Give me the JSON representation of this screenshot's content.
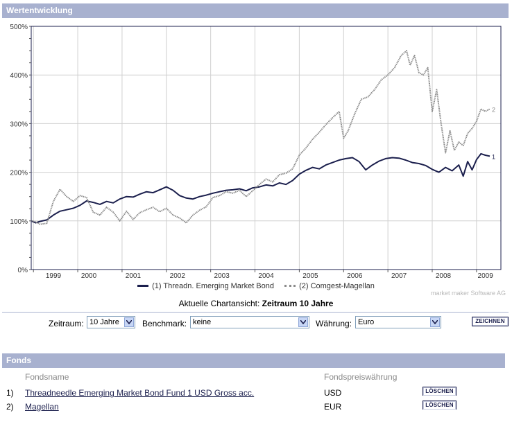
{
  "header": {
    "title": "Wertentwicklung"
  },
  "chart_data": {
    "type": "line",
    "title": "Wertentwicklung",
    "xlabel": "",
    "ylabel": "",
    "ylim": [
      0,
      500
    ],
    "yticks": [
      "0%",
      "100%",
      "200%",
      "300%",
      "400%",
      "500%"
    ],
    "x_labels": [
      "1999",
      "2000",
      "2001",
      "2002",
      "2003",
      "2004",
      "2005",
      "2006",
      "2007",
      "2008",
      "2009"
    ],
    "x_label_positions_year": [
      1999.2,
      2000.0,
      2001.0,
      2002.0,
      2003.0,
      2004.0,
      2005.0,
      2006.0,
      2007.0,
      2008.0,
      2008.95
    ],
    "xlim": [
      1998.95,
      2009.55
    ],
    "grid": true,
    "series": [
      {
        "name": "Threadn. Emerging Market Bond",
        "index": "(1)",
        "end_label": "1",
        "style": "solid",
        "color": "#1b1f4d",
        "x": [
          1998.95,
          1999.05,
          1999.15,
          1999.3,
          1999.45,
          1999.6,
          1999.75,
          1999.9,
          2000.05,
          2000.2,
          2000.35,
          2000.5,
          2000.65,
          2000.8,
          2000.95,
          2001.1,
          2001.25,
          2001.4,
          2001.55,
          2001.7,
          2001.85,
          2002.0,
          2002.15,
          2002.3,
          2002.45,
          2002.6,
          2002.75,
          2002.9,
          2003.05,
          2003.2,
          2003.35,
          2003.5,
          2003.65,
          2003.8,
          2003.95,
          2004.1,
          2004.25,
          2004.4,
          2004.55,
          2004.7,
          2004.85,
          2005.0,
          2005.15,
          2005.3,
          2005.45,
          2005.6,
          2005.75,
          2005.9,
          2006.05,
          2006.2,
          2006.35,
          2006.5,
          2006.65,
          2006.8,
          2006.95,
          2007.1,
          2007.25,
          2007.4,
          2007.55,
          2007.7,
          2007.85,
          2008.0,
          2008.15,
          2008.3,
          2008.45,
          2008.6,
          2008.7,
          2008.8,
          2008.9,
          2009.0,
          2009.1,
          2009.2,
          2009.3
        ],
        "values": [
          100,
          96,
          99,
          102,
          112,
          120,
          123,
          126,
          132,
          141,
          138,
          134,
          140,
          137,
          145,
          150,
          149,
          155,
          160,
          158,
          164,
          170,
          163,
          152,
          147,
          145,
          150,
          153,
          157,
          160,
          163,
          164,
          166,
          162,
          168,
          170,
          174,
          172,
          178,
          175,
          183,
          196,
          204,
          210,
          207,
          215,
          220,
          225,
          228,
          230,
          222,
          205,
          215,
          223,
          228,
          230,
          229,
          225,
          220,
          218,
          214,
          206,
          200,
          210,
          203,
          215,
          192,
          222,
          205,
          226,
          238,
          235,
          233
        ]
      },
      {
        "name": "Comgest-Magellan",
        "index": "(2)",
        "end_label": "2",
        "style": "dotted",
        "color": "#8a8a8a",
        "x": [
          1998.95,
          1999.05,
          1999.15,
          1999.3,
          1999.45,
          1999.6,
          1999.75,
          1999.9,
          2000.05,
          2000.2,
          2000.35,
          2000.5,
          2000.65,
          2000.8,
          2000.95,
          2001.1,
          2001.25,
          2001.4,
          2001.55,
          2001.7,
          2001.85,
          2002.0,
          2002.15,
          2002.3,
          2002.45,
          2002.6,
          2002.75,
          2002.9,
          2003.05,
          2003.2,
          2003.35,
          2003.5,
          2003.65,
          2003.8,
          2003.95,
          2004.1,
          2004.25,
          2004.4,
          2004.55,
          2004.7,
          2004.85,
          2005.0,
          2005.15,
          2005.3,
          2005.45,
          2005.6,
          2005.75,
          2005.9,
          2006.0,
          2006.1,
          2006.25,
          2006.4,
          2006.55,
          2006.7,
          2006.85,
          2007.0,
          2007.15,
          2007.3,
          2007.42,
          2007.5,
          2007.6,
          2007.7,
          2007.8,
          2007.9,
          2008.0,
          2008.1,
          2008.2,
          2008.3,
          2008.4,
          2008.5,
          2008.6,
          2008.7,
          2008.8,
          2008.9,
          2009.0,
          2009.1,
          2009.2,
          2009.3
        ],
        "values": [
          100,
          98,
          93,
          95,
          140,
          165,
          150,
          140,
          152,
          148,
          118,
          112,
          128,
          118,
          100,
          120,
          103,
          117,
          123,
          128,
          119,
          126,
          112,
          106,
          96,
          112,
          122,
          129,
          148,
          152,
          160,
          157,
          163,
          150,
          162,
          175,
          186,
          180,
          195,
          198,
          207,
          235,
          250,
          268,
          282,
          298,
          312,
          325,
          270,
          285,
          320,
          350,
          355,
          370,
          390,
          400,
          415,
          440,
          450,
          420,
          440,
          405,
          400,
          415,
          325,
          370,
          300,
          240,
          285,
          245,
          262,
          255,
          280,
          290,
          305,
          330,
          325,
          330
        ]
      }
    ]
  },
  "legend": {
    "item1": "(1) Threadn. Emerging Market Bond",
    "item2": "(2) Comgest-Magellan"
  },
  "copyright": "market maker Software AG",
  "current_view": {
    "label": "Aktuelle Chartansicht:",
    "value": "Zeitraum 10 Jahre"
  },
  "controls": {
    "zeitraum_label": "Zeitraum:",
    "zeitraum_value": "10 Jahre",
    "benchmark_label": "Benchmark:",
    "benchmark_value": "keine",
    "waehrung_label": "Währung:",
    "waehrung_value": "Euro",
    "zeichnen_button": "ZEICHNEN"
  },
  "funds": {
    "title": "Fonds",
    "col_name": "Fondsname",
    "col_currency": "Fondspreiswährung",
    "delete_label": "LÖSCHEN",
    "rows": [
      {
        "num": "1)",
        "name": "Threadneedle Emerging Market Bond Fund 1 USD Gross acc.",
        "currency": "USD"
      },
      {
        "num": "2)",
        "name": "Magellan",
        "currency": "EUR"
      }
    ]
  }
}
